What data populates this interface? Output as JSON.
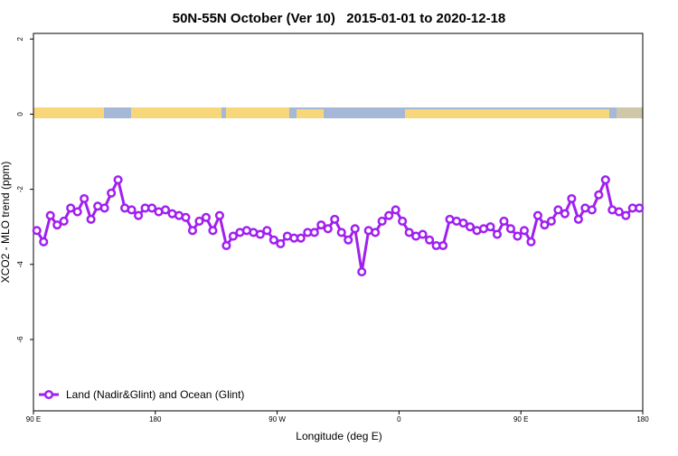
{
  "chart_data": {
    "type": "line",
    "title": "50N-55N October (Ver 10)   2015-01-01 to 2020-12-18",
    "x_label": "Longitude (deg E)",
    "y_label": "XCO2 - MLO trend (ppm)",
    "xlim": [
      90,
      540
    ],
    "ylim": [
      -7.9,
      2.15
    ],
    "xticks": [
      {
        "value": 90,
        "label": "90 E"
      },
      {
        "value": 180,
        "label": "180"
      },
      {
        "value": 270,
        "label": "90 W"
      },
      {
        "value": 360,
        "label": "0"
      },
      {
        "value": 450,
        "label": "90 E"
      },
      {
        "value": 540,
        "label": "180"
      }
    ],
    "yticks": [
      -6,
      -4,
      -2,
      0,
      2
    ],
    "legend": "bottom-left",
    "series": [
      {
        "name": "Land (Nadir&Glint) and Ocean (Glint)",
        "color": "#a020f0",
        "x": [
          92.5,
          97.5,
          102.5,
          107.5,
          112.5,
          117.5,
          122.5,
          127.5,
          132.5,
          137.5,
          142.5,
          147.5,
          152.5,
          157.5,
          162.5,
          167.5,
          172.5,
          177.5,
          182.5,
          187.5,
          192.5,
          197.5,
          202.5,
          207.5,
          212.5,
          217.5,
          222.5,
          227.5,
          232.5,
          237.5,
          242.5,
          247.5,
          252.5,
          257.5,
          262.5,
          267.5,
          272.5,
          277.5,
          282.5,
          287.5,
          292.5,
          297.5,
          302.5,
          307.5,
          312.5,
          317.5,
          322.5,
          327.5,
          332.5,
          337.5,
          342.5,
          347.5,
          352.5,
          357.5,
          362.5,
          367.5,
          372.5,
          377.5,
          382.5,
          387.5,
          392.5,
          397.5,
          402.5,
          407.5,
          412.5,
          417.5,
          422.5,
          427.5,
          432.5,
          437.5,
          442.5,
          447.5,
          452.5,
          457.5,
          462.5,
          467.5,
          472.5,
          477.5,
          482.5,
          487.5,
          492.5,
          497.5,
          502.5,
          507.5,
          512.5,
          517.5,
          522.5,
          527.5,
          532.5,
          537.5
        ],
        "values": [
          -3.1,
          -3.4,
          -2.7,
          -2.95,
          -2.85,
          -2.5,
          -2.6,
          -2.25,
          -2.8,
          -2.45,
          -2.5,
          -2.1,
          -1.75,
          -2.5,
          -2.55,
          -2.7,
          -2.5,
          -2.5,
          -2.6,
          -2.55,
          -2.65,
          -2.7,
          -2.75,
          -3.1,
          -2.85,
          -2.75,
          -3.1,
          -2.7,
          -3.5,
          -3.25,
          -3.15,
          -3.1,
          -3.15,
          -3.2,
          -3.1,
          -3.35,
          -3.45,
          -3.25,
          -3.3,
          -3.3,
          -3.15,
          -3.15,
          -2.95,
          -3.05,
          -2.8,
          -3.15,
          -3.35,
          -3.05,
          -4.2,
          -3.1,
          -3.15,
          -2.85,
          -2.7,
          -2.55,
          -2.85,
          -3.15,
          -3.25,
          -3.2,
          -3.35,
          -3.5,
          -3.5,
          -2.8,
          -2.85,
          -2.9,
          -3.0,
          -3.1,
          -3.05,
          -3.0,
          -3.2,
          -2.85,
          -3.05,
          -3.25,
          -3.1,
          -3.4,
          -2.7,
          -2.95,
          -2.85,
          -2.55,
          -2.65,
          -2.25,
          -2.8,
          -2.5,
          -2.55,
          -2.15,
          -1.75,
          -2.55,
          -2.6,
          -2.7,
          -2.5,
          -2.5
        ]
      }
    ]
  }
}
